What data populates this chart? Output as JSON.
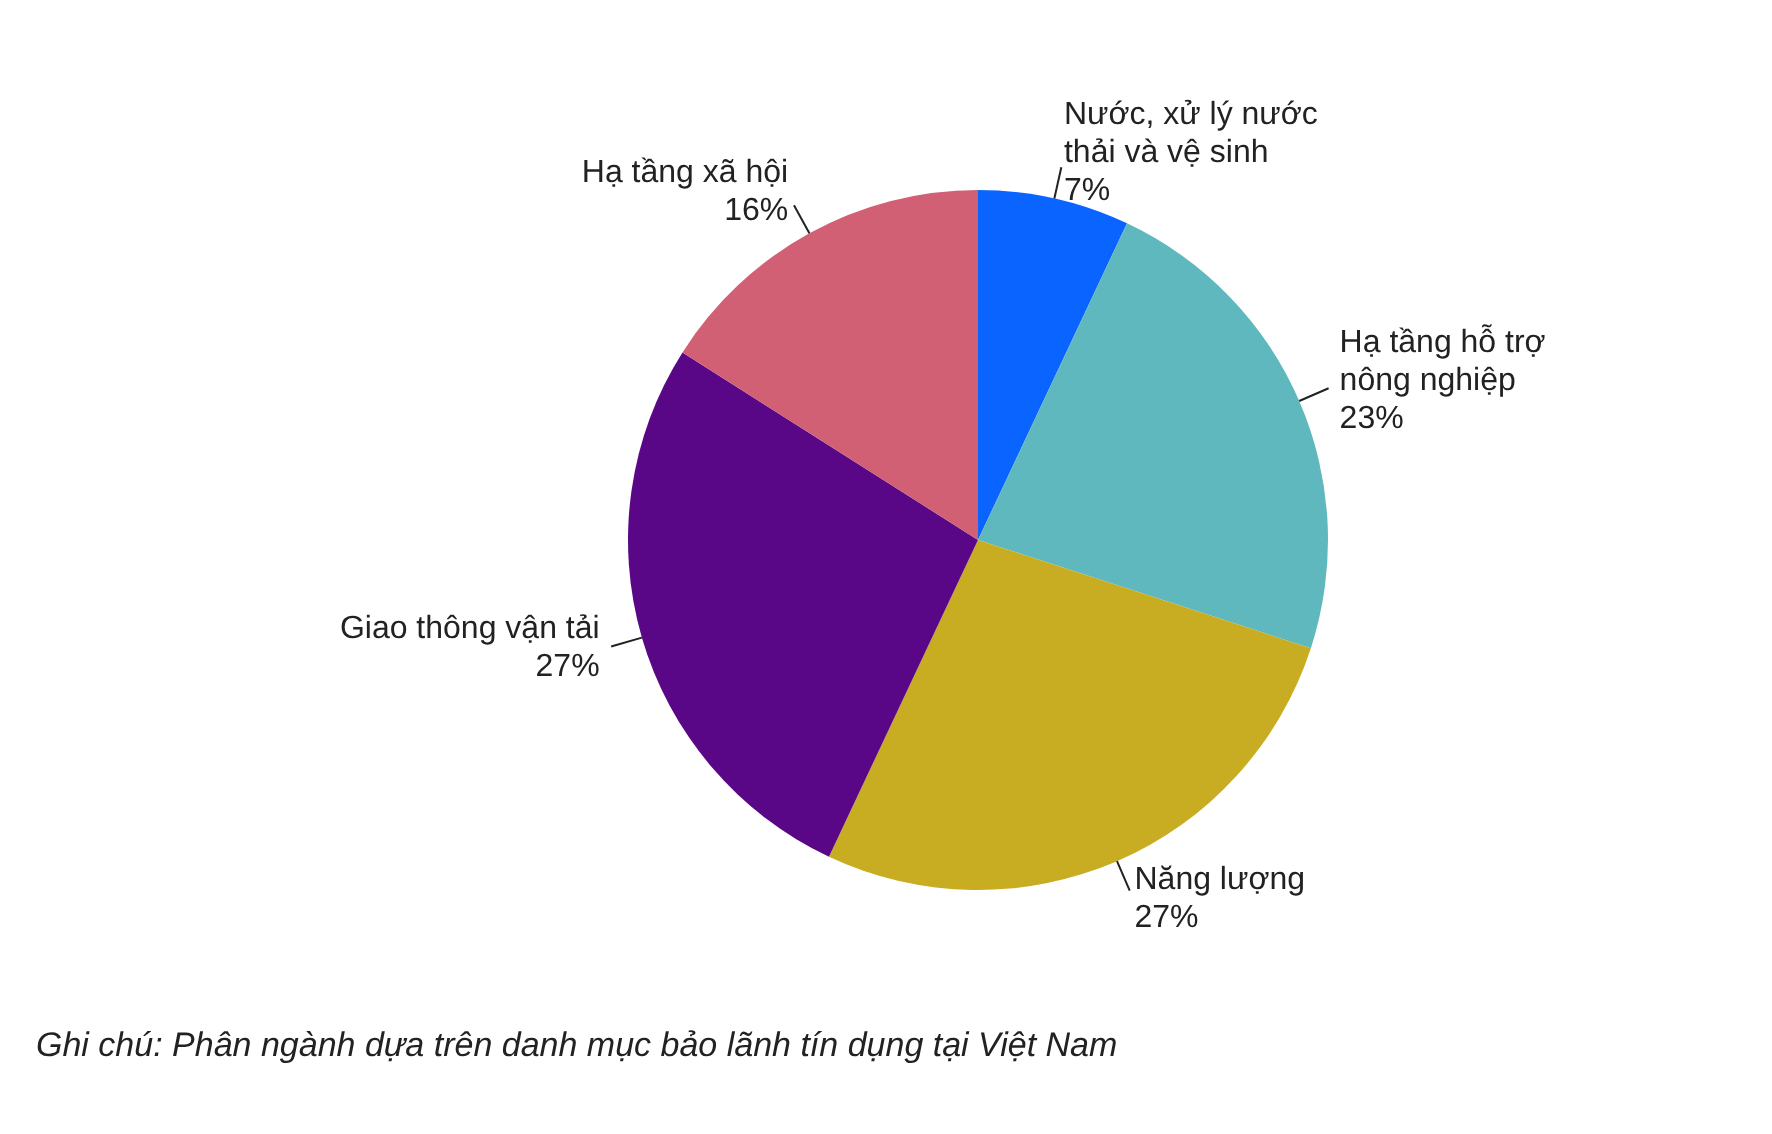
{
  "chart_data": {
    "type": "pie",
    "categories": [
      "Nước, xử lý nước thải và vệ sinh",
      "Hạ tầng hỗ trợ nông nghiệp",
      "Năng lượng",
      "Giao thông vận tải",
      "Hạ tầng xã hội"
    ],
    "values": [
      7,
      23,
      27,
      27,
      16
    ],
    "value_labels": [
      "7%",
      "23%",
      "27%",
      "27%",
      "16%"
    ],
    "colors": [
      "#0a64ff",
      "#5fb8be",
      "#c8ad22",
      "#5a0787",
      "#d16074"
    ],
    "annotations": [
      "Ghi chú: Phân ngành dựa trên danh mục bảo lãnh tín dụng tại Việt Nam"
    ]
  }
}
